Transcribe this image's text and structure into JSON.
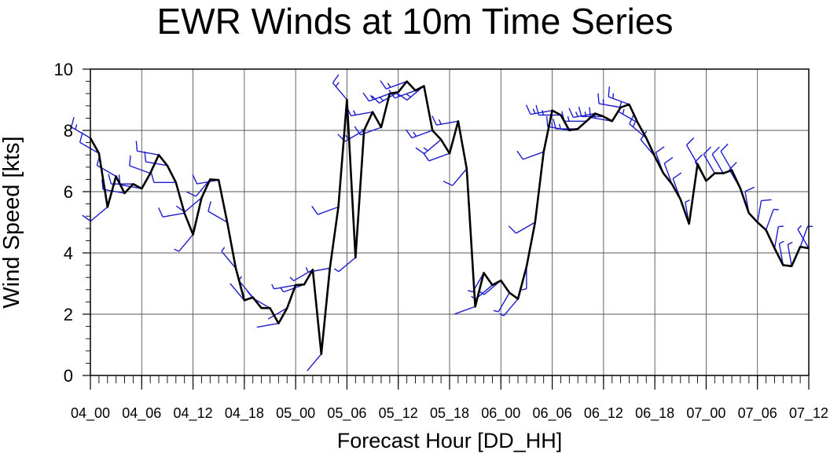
{
  "chart_data": {
    "type": "line",
    "title": "EWR Winds at 10m Time Series",
    "xlabel": "Forecast Hour [DD_HH]",
    "ylabel": "Wind Speed [kts]",
    "ylim": [
      0,
      10
    ],
    "xlim": [
      0,
      84
    ],
    "yticks": [
      "0",
      "2",
      "4",
      "6",
      "8",
      "10"
    ],
    "xticks": [
      {
        "at": 0,
        "label": "04_00"
      },
      {
        "at": 6,
        "label": "04_06"
      },
      {
        "at": 12,
        "label": "04_12"
      },
      {
        "at": 18,
        "label": "04_18"
      },
      {
        "at": 24,
        "label": "05_00"
      },
      {
        "at": 30,
        "label": "05_06"
      },
      {
        "at": 36,
        "label": "05_12"
      },
      {
        "at": 42,
        "label": "05_18"
      },
      {
        "at": 48,
        "label": "06_00"
      },
      {
        "at": 54,
        "label": "06_06"
      },
      {
        "at": 60,
        "label": "06_12"
      },
      {
        "at": 66,
        "label": "06_18"
      },
      {
        "at": 72,
        "label": "07_00"
      },
      {
        "at": 78,
        "label": "07_06"
      },
      {
        "at": 84,
        "label": "07_12"
      }
    ],
    "grid": true,
    "series": [
      {
        "color": "#000000",
        "x": [
          0,
          1,
          2,
          3,
          4,
          5,
          6,
          7,
          8,
          9,
          10,
          11,
          12,
          13,
          14,
          15,
          16,
          17,
          18,
          19,
          20,
          21,
          22,
          23,
          24,
          25,
          26,
          27,
          28,
          29,
          30,
          31,
          32,
          33,
          34,
          35,
          36,
          37,
          38,
          39,
          40,
          41,
          42,
          43,
          44,
          45,
          46,
          47,
          48,
          49,
          50,
          51,
          52,
          53,
          54,
          55,
          56,
          57,
          58,
          59,
          60,
          61,
          62,
          63,
          64,
          65,
          66,
          67,
          68,
          69,
          70,
          71,
          72,
          73,
          74,
          75,
          76,
          77,
          78,
          79,
          80,
          81,
          82,
          83,
          84
        ],
        "y": [
          7.75,
          7.25,
          5.5,
          6.5,
          5.95,
          6.25,
          6.1,
          6.6,
          7.2,
          6.85,
          6.3,
          5.3,
          4.6,
          5.8,
          6.4,
          6.38,
          5.0,
          3.5,
          2.45,
          2.55,
          2.2,
          2.2,
          1.7,
          2.2,
          2.95,
          2.97,
          3.45,
          0.7,
          3.5,
          5.5,
          9.0,
          3.85,
          8.0,
          8.6,
          8.1,
          9.2,
          9.25,
          9.6,
          9.3,
          9.45,
          8.0,
          7.7,
          7.25,
          8.3,
          6.75,
          2.25,
          3.35,
          2.95,
          3.1,
          2.7,
          2.5,
          3.55,
          5.0,
          7.3,
          8.65,
          8.5,
          8.0,
          8.05,
          8.3,
          8.55,
          8.45,
          8.3,
          8.75,
          8.85,
          8.25,
          7.75,
          7.15,
          6.6,
          6.25,
          5.75,
          4.95,
          6.9,
          6.35,
          6.6,
          6.6,
          6.7,
          6.1,
          5.3,
          5.0,
          4.75,
          4.15,
          3.6,
          3.57,
          4.2,
          4.15
        ]
      }
    ],
    "barb_color": "#1c1ccc",
    "wind_barb_dirs_deg": [
      300,
      300,
      230,
      300,
      280,
      270,
      280,
      290,
      280,
      280,
      270,
      260,
      220,
      230,
      220,
      260,
      300,
      320,
      320,
      320,
      320,
      300,
      260,
      240,
      260,
      250,
      240,
      220,
      260,
      250,
      320,
      230,
      240,
      260,
      250,
      250,
      240,
      250,
      250,
      230,
      250,
      230,
      250,
      260,
      220,
      250,
      210,
      230,
      230,
      210,
      220,
      180,
      240,
      250,
      260,
      270,
      280,
      270,
      270,
      260,
      270,
      280,
      280,
      290,
      300,
      310,
      320,
      340,
      340,
      340,
      350,
      330,
      330,
      330,
      330,
      330,
      330,
      350,
      10,
      20,
      10,
      350,
      350,
      20,
      330
    ]
  }
}
